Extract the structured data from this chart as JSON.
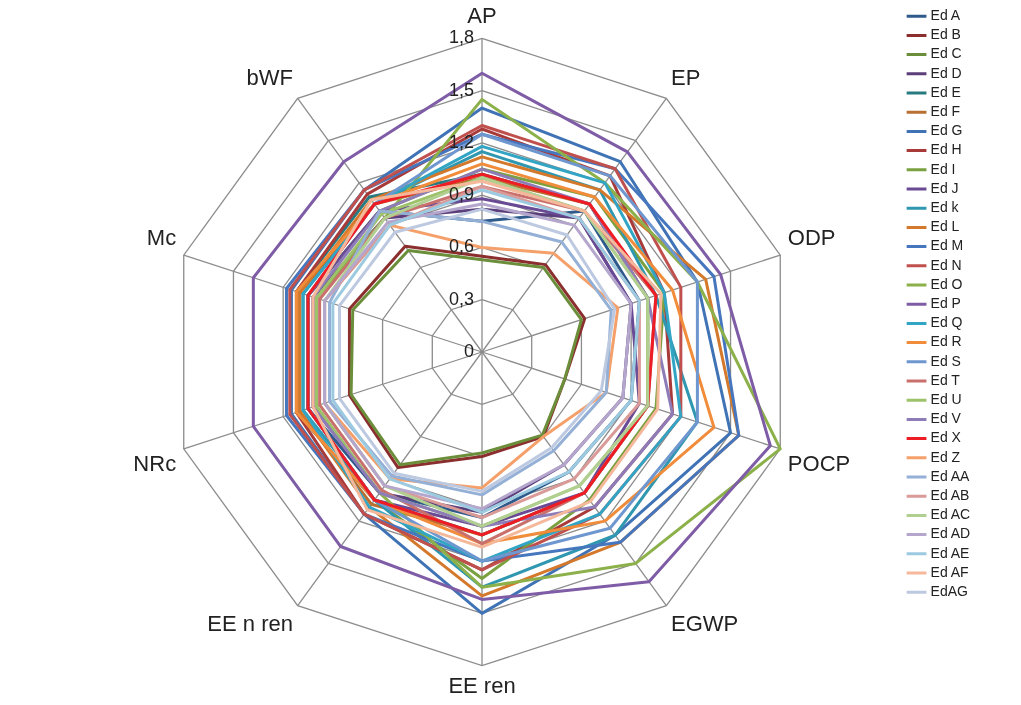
{
  "chart_data": {
    "type": "radar",
    "categories": [
      "AP",
      "EP",
      "ODP",
      "POCP",
      "EGWP",
      "EE ren",
      "EE n ren",
      "NRc",
      "Mc",
      "bWF"
    ],
    "ylim": [
      0,
      1.8
    ],
    "yticks": [
      0,
      {
        "value": 0.3,
        "label": "0,3"
      },
      {
        "value": 0.6,
        "label": "0,6"
      },
      {
        "value": 0.9,
        "label": "0,9"
      },
      {
        "value": 1.2,
        "label": "1,2"
      },
      {
        "value": 1.5,
        "label": "1,5"
      },
      {
        "value": 1.8,
        "label": "1,8"
      }
    ],
    "grid": true,
    "legend": "right",
    "marker": "none",
    "line_style": "solid",
    "series": [
      {
        "name": "Ed A",
        "color": "#2e5a8c",
        "values": [
          0.75,
          1.0,
          0.95,
          0.9,
          0.85,
          0.95,
          1.0,
          1.05,
          1.05,
          1.0
        ]
      },
      {
        "name": "Ed B",
        "color": "#8b2e2e",
        "values": [
          0.55,
          0.62,
          0.62,
          0.5,
          0.6,
          0.6,
          0.82,
          0.8,
          0.8,
          0.75
        ]
      },
      {
        "name": "Ed C",
        "color": "#6b8e3a",
        "values": [
          0.53,
          0.6,
          0.6,
          0.5,
          0.59,
          0.58,
          0.8,
          0.79,
          0.78,
          0.72
        ]
      },
      {
        "name": "Ed D",
        "color": "#5b3f7a",
        "values": [
          0.82,
          0.95,
          0.9,
          0.85,
          0.8,
          0.92,
          1.0,
          1.02,
          1.02,
          0.95
        ]
      },
      {
        "name": "Ed E",
        "color": "#267a80",
        "values": [
          1.02,
          1.05,
          1.0,
          1.0,
          1.0,
          1.05,
          1.05,
          1.12,
          1.12,
          1.1
        ]
      },
      {
        "name": "Ed F",
        "color": "#b86f30",
        "values": [
          1.0,
          1.05,
          1.0,
          1.0,
          1.0,
          1.05,
          1.08,
          1.1,
          1.1,
          1.05
        ]
      },
      {
        "name": "Ed G",
        "color": "#3f73b5",
        "values": [
          1.4,
          1.35,
          1.3,
          1.5,
          1.3,
          1.5,
          1.15,
          1.15,
          1.15,
          1.15
        ]
      },
      {
        "name": "Ed H",
        "color": "#a83a3a",
        "values": [
          1.28,
          1.25,
          1.1,
          1.15,
          1.1,
          1.25,
          1.15,
          1.12,
          1.12,
          1.12
        ]
      },
      {
        "name": "Ed I",
        "color": "#7aa03f",
        "values": [
          1.05,
          1.1,
          1.1,
          1.05,
          1.05,
          1.3,
          1.05,
          1.05,
          1.05,
          1.0
        ]
      },
      {
        "name": "Ed J",
        "color": "#6a4a94",
        "values": [
          0.88,
          0.95,
          0.9,
          0.95,
          1.0,
          1.0,
          1.05,
          1.05,
          1.05,
          1.0
        ]
      },
      {
        "name": "Ed k",
        "color": "#2f97b0",
        "values": [
          1.15,
          1.15,
          1.05,
          1.3,
          1.3,
          1.35,
          1.05,
          1.08,
          1.08,
          1.05
        ]
      },
      {
        "name": "Ed L",
        "color": "#d4792b",
        "values": [
          1.12,
          1.15,
          1.35,
          1.55,
          1.35,
          1.4,
          1.1,
          1.1,
          1.1,
          1.08
        ]
      },
      {
        "name": "Ed M",
        "color": "#4677be",
        "values": [
          1.25,
          1.3,
          1.4,
          1.55,
          1.35,
          1.2,
          1.15,
          1.18,
          1.18,
          1.15
        ]
      },
      {
        "name": "Ed N",
        "color": "#c0504d",
        "values": [
          1.3,
          1.3,
          1.2,
          1.2,
          1.15,
          1.25,
          1.15,
          1.16,
          1.16,
          1.15
        ]
      },
      {
        "name": "Ed O",
        "color": "#8cb04a",
        "values": [
          1.45,
          1.2,
          1.3,
          1.8,
          1.5,
          1.35,
          1.0,
          1.0,
          1.0,
          0.95
        ]
      },
      {
        "name": "Ed P",
        "color": "#7e5ca6",
        "values": [
          1.6,
          1.42,
          1.44,
          1.74,
          1.63,
          1.42,
          1.38,
          1.38,
          1.38,
          1.35
        ]
      },
      {
        "name": "Ed Q",
        "color": "#33a5c4",
        "values": [
          1.18,
          1.2,
          1.1,
          1.2,
          1.15,
          1.2,
          1.1,
          1.08,
          1.08,
          1.05
        ]
      },
      {
        "name": "Ed R",
        "color": "#f08c3a",
        "values": [
          1.08,
          1.1,
          1.15,
          1.4,
          1.2,
          1.1,
          1.05,
          1.12,
          1.12,
          1.05
        ]
      },
      {
        "name": "Ed S",
        "color": "#6f97cf",
        "values": [
          1.25,
          1.25,
          1.3,
          1.3,
          1.25,
          1.2,
          1.05,
          1.05,
          1.05,
          1.05
        ]
      },
      {
        "name": "Ed T",
        "color": "#c9706c",
        "values": [
          0.95,
          1.0,
          1.05,
          1.0,
          1.0,
          1.1,
          0.98,
          0.98,
          0.98,
          0.95
        ]
      },
      {
        "name": "Ed U",
        "color": "#9dc26a",
        "values": [
          1.0,
          1.0,
          1.0,
          1.0,
          0.95,
          1.0,
          1.0,
          1.0,
          1.0,
          0.98
        ]
      },
      {
        "name": "Ed V",
        "color": "#8d7cb8",
        "values": [
          1.05,
          1.05,
          1.0,
          1.15,
          1.1,
          1.0,
          1.0,
          1.02,
          1.02,
          1.0
        ]
      },
      {
        "name": "Ed X",
        "color": "#ee1c24",
        "values": [
          1.02,
          1.05,
          1.05,
          1.0,
          1.0,
          1.05,
          1.05,
          1.05,
          1.05,
          1.05
        ]
      },
      {
        "name": "Ed Z",
        "color": "#f5a06a",
        "values": [
          0.6,
          0.7,
          0.82,
          0.75,
          0.6,
          0.78,
          0.9,
          0.95,
          0.95,
          0.9
        ]
      },
      {
        "name": "Ed AA",
        "color": "#95b0d6",
        "values": [
          0.75,
          0.78,
          0.78,
          0.75,
          0.7,
          0.82,
          0.88,
          0.92,
          0.92,
          1.0
        ]
      },
      {
        "name": "Ed AB",
        "color": "#d99a98",
        "values": [
          0.95,
          0.95,
          0.95,
          0.95,
          0.9,
          0.95,
          0.95,
          0.95,
          0.95,
          0.9
        ]
      },
      {
        "name": "Ed AC",
        "color": "#b2cf92",
        "values": [
          1.0,
          1.0,
          1.0,
          1.0,
          0.95,
          1.0,
          0.95,
          0.95,
          0.95,
          0.95
        ]
      },
      {
        "name": "Ed AD",
        "color": "#b4a6cc",
        "values": [
          0.85,
          0.9,
          0.9,
          0.85,
          0.8,
          0.9,
          0.95,
          0.95,
          0.95,
          0.92
        ]
      },
      {
        "name": "Ed AE",
        "color": "#9ccae0",
        "values": [
          0.93,
          0.95,
          0.95,
          0.9,
          0.85,
          0.92,
          0.9,
          0.9,
          0.9,
          0.9
        ]
      },
      {
        "name": "Ed AF",
        "color": "#f5b89a",
        "values": [
          0.98,
          1.0,
          1.08,
          1.06,
          1.06,
          1.12,
          1.12,
          1.02,
          1.02,
          1.08
        ]
      },
      {
        "name": "EdAG",
        "color": "#bcc9e0",
        "values": [
          0.82,
          0.83,
          0.8,
          0.72,
          0.68,
          0.8,
          0.86,
          0.86,
          0.86,
          0.85
        ]
      }
    ]
  }
}
